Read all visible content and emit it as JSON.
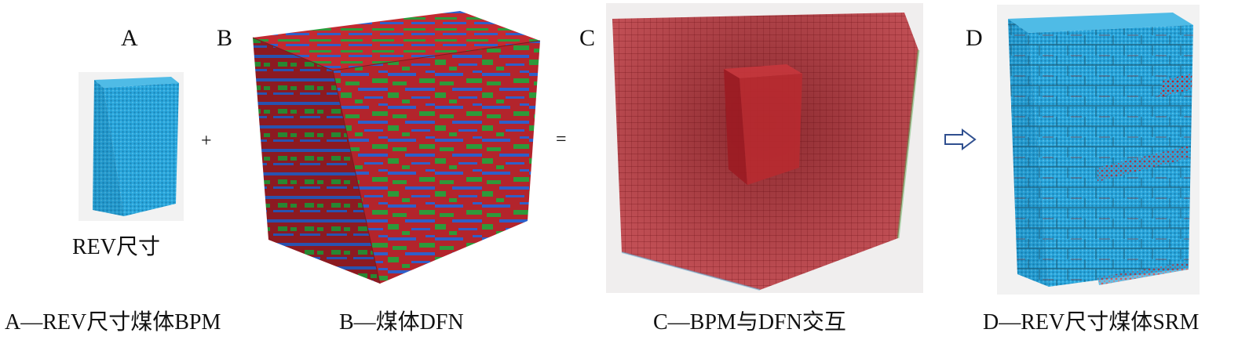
{
  "panels": [
    {
      "letter": "A",
      "caption": "A—REV尺寸煤体BPM",
      "sublabel": "REV尺寸"
    },
    {
      "letter": "B",
      "caption": "B—煤体DFN"
    },
    {
      "letter": "C",
      "caption": "C—BPM与DFN交互"
    },
    {
      "letter": "D",
      "caption": "D—REV尺寸煤体SRM"
    }
  ],
  "operators": {
    "plus": "+",
    "equals": "="
  },
  "colors": {
    "particle_blue": "#2aa6dc",
    "fracture_red": "#b3242c",
    "fracture_green": "#2e9a3a",
    "fracture_blue": "#2f5fc9",
    "arrow_outline": "#2f4f8f"
  }
}
